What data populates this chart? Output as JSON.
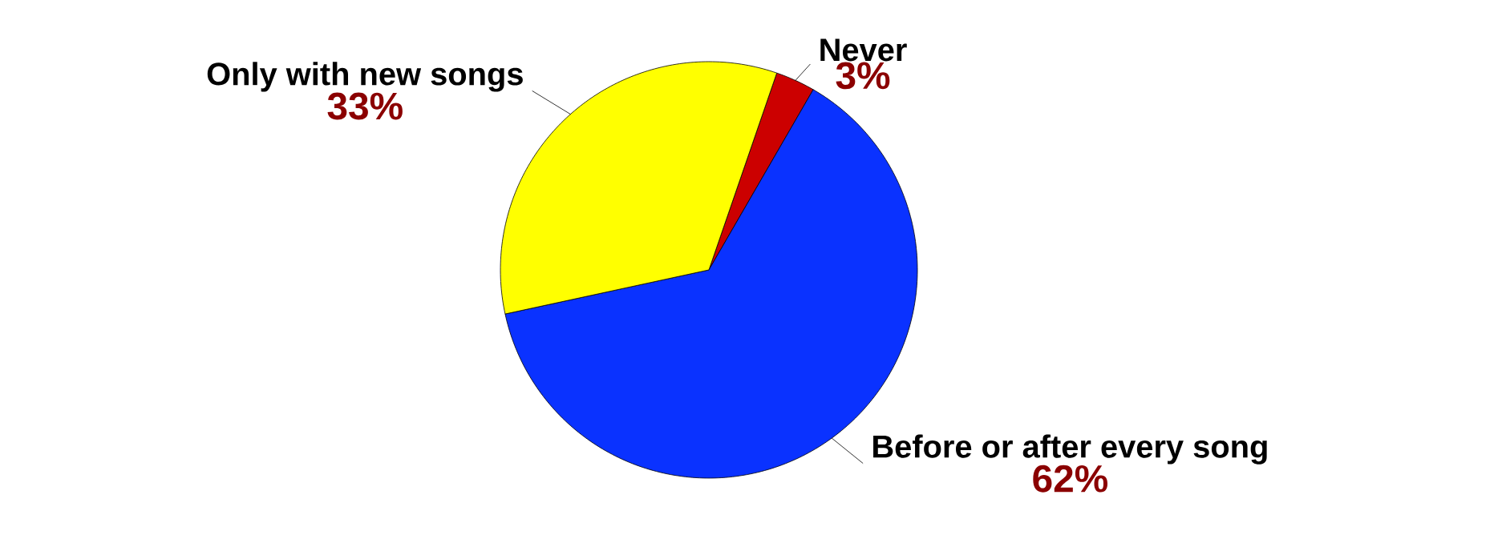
{
  "chart_data": {
    "type": "pie",
    "categories": [
      "Never",
      "Before or after every song",
      "Only with new songs"
    ],
    "values": [
      3,
      62,
      33
    ],
    "colors": [
      "#cc0000",
      "#0a32ff",
      "#ffff00"
    ],
    "value_labels": [
      "3%",
      "62%",
      "33%"
    ]
  }
}
